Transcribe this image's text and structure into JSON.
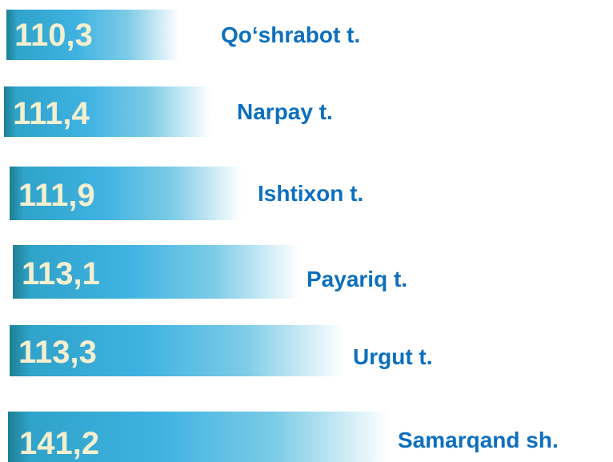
{
  "items": [
    {
      "value": "110,3",
      "label": "Qo‘shrabot t."
    },
    {
      "value": "111,4",
      "label": "Narpay t."
    },
    {
      "value": "111,9",
      "label": "Ishtixon t."
    },
    {
      "value": "113,1",
      "label": "Payariq t."
    },
    {
      "value": "113,3",
      "label": "Urgut t."
    },
    {
      "value": "141,2",
      "label": "Samarqand sh."
    }
  ]
}
